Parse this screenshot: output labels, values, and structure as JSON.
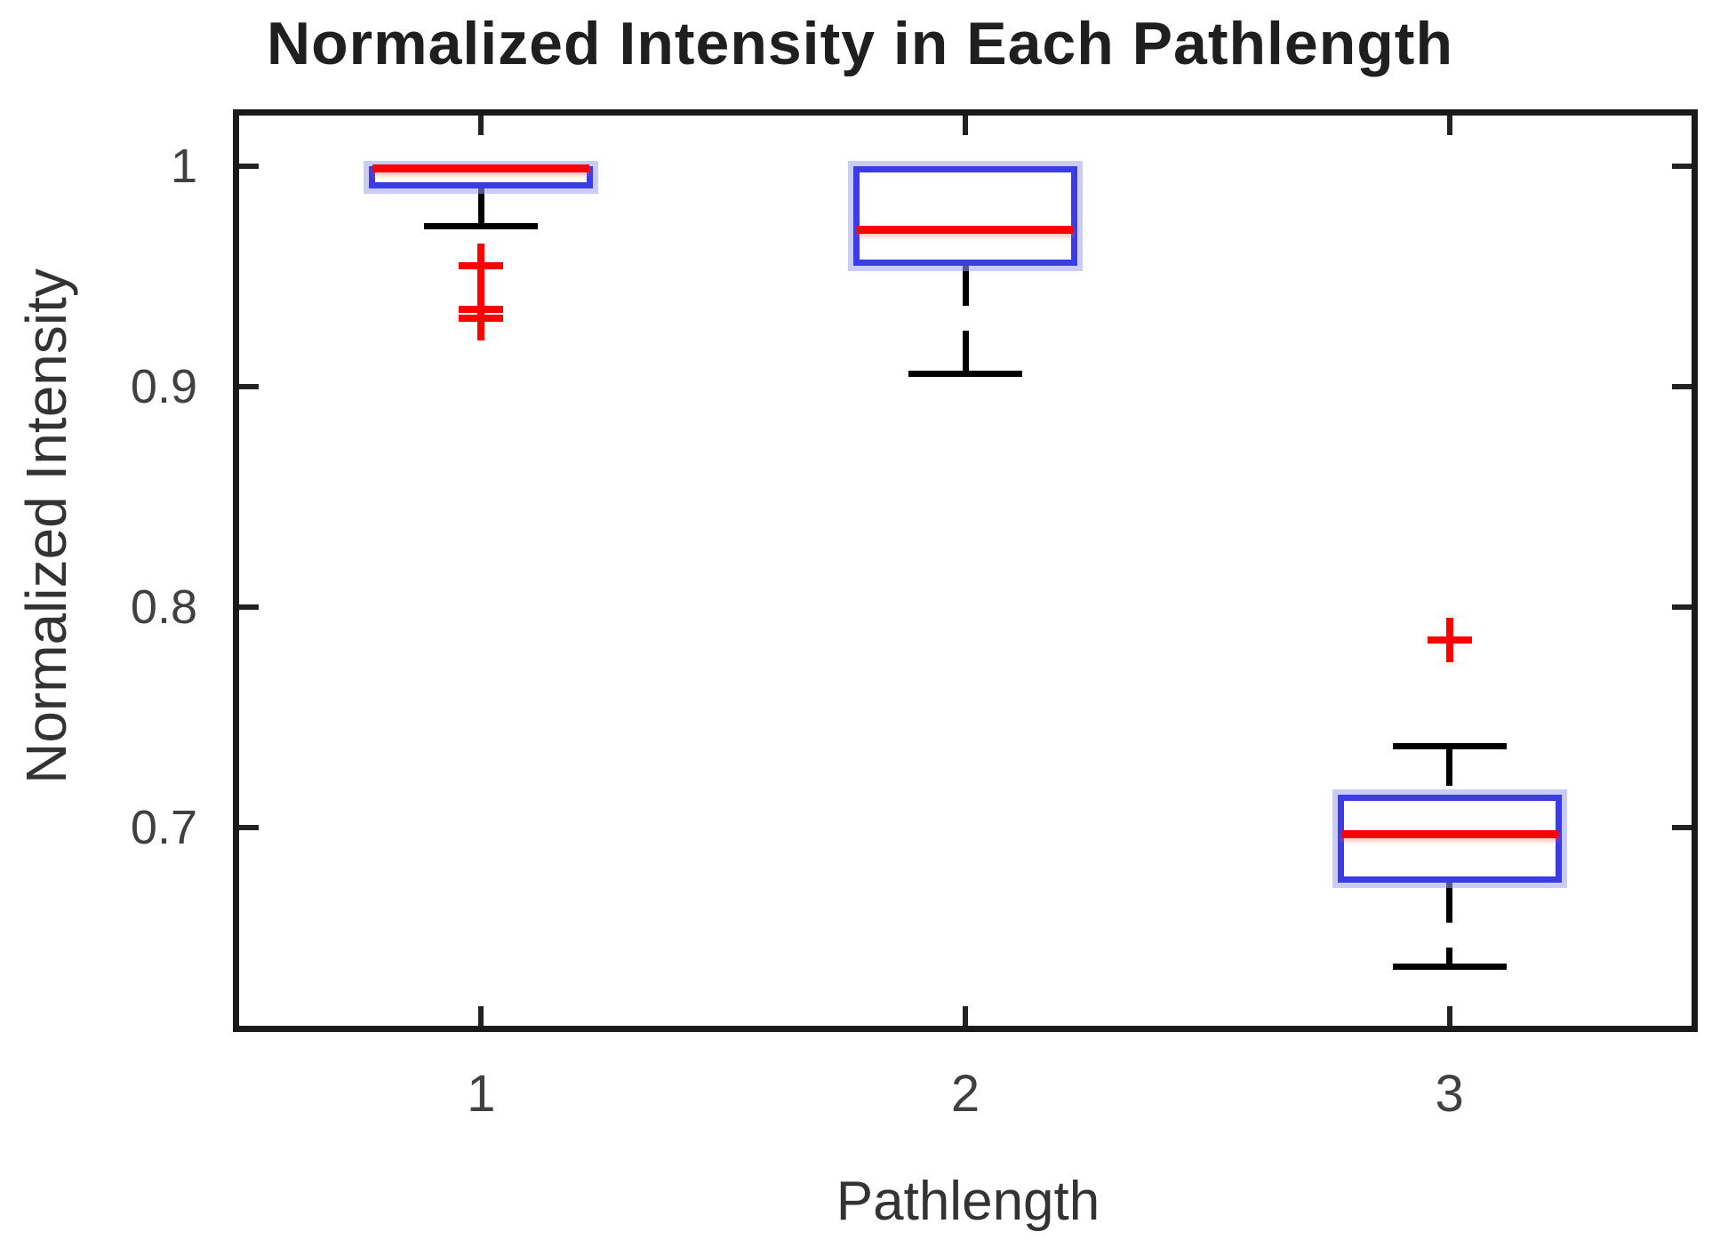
{
  "chart_data": {
    "type": "boxplot",
    "title": "Normalized Intensity in Each Pathlength",
    "xlabel": "Pathlength",
    "ylabel": "Normalized Intensity",
    "categories": [
      "1",
      "2",
      "3"
    ],
    "yticks": [
      {
        "value": 1.0,
        "label": "1"
      },
      {
        "value": 0.9,
        "label": "0.9"
      },
      {
        "value": 0.8,
        "label": "0.8"
      },
      {
        "value": 0.7,
        "label": "0.7"
      }
    ],
    "ylim": [
      0.61,
      1.023
    ],
    "grid": false,
    "legend": false,
    "series": [
      {
        "category": "1",
        "q1": 0.99,
        "median": 0.999,
        "q3": 1.0,
        "whisker_low": 0.973,
        "whisker_high": null,
        "outliers": [
          0.955,
          0.935,
          0.931
        ]
      },
      {
        "category": "2",
        "q1": 0.955,
        "median": 0.971,
        "q3": 1.0,
        "whisker_low": 0.906,
        "whisker_high": null,
        "outliers": []
      },
      {
        "category": "3",
        "q1": 0.675,
        "median": 0.697,
        "q3": 0.715,
        "whisker_low": 0.637,
        "whisker_high": 0.737,
        "outliers": [
          0.785
        ]
      }
    ],
    "colors": {
      "box_edge": "#3c3ce6",
      "box_halo": "#a0a0f3",
      "median": "#ff0000",
      "whisker": "#000000",
      "outlier": "#ff0000",
      "axis": "#1a1a1a",
      "text": "#404040"
    }
  }
}
